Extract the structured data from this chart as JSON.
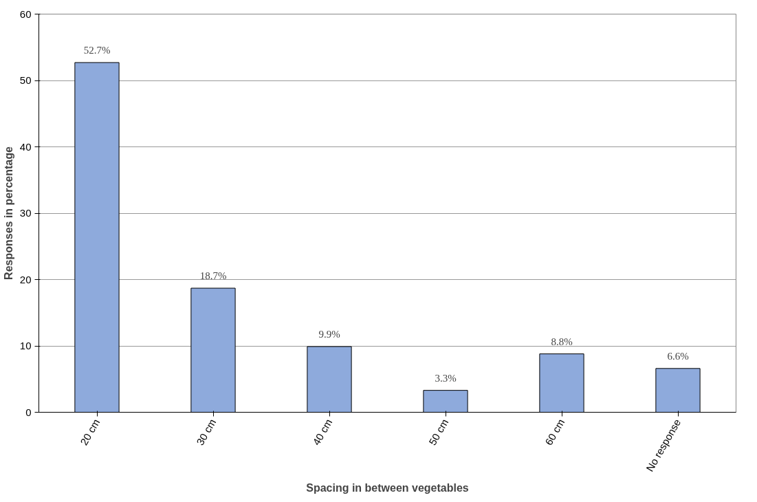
{
  "chart_data": {
    "type": "bar",
    "xlabel": "Spacing in between vegetables",
    "ylabel": "Responses in percentage",
    "categories": [
      "20 cm",
      "30 cm",
      "40 cm",
      "50 cm",
      "60 cm",
      "No response"
    ],
    "values": [
      52.7,
      18.7,
      9.9,
      3.3,
      8.8,
      6.6
    ],
    "value_labels": [
      "52.7%",
      "18.7%",
      "9.9%",
      "3.3%",
      "8.8%",
      "6.6%"
    ],
    "color": "#8eaadc",
    "ylim": [
      0,
      60
    ],
    "yticks": [
      0,
      10,
      20,
      30,
      40,
      50,
      60
    ],
    "grid": "y"
  }
}
